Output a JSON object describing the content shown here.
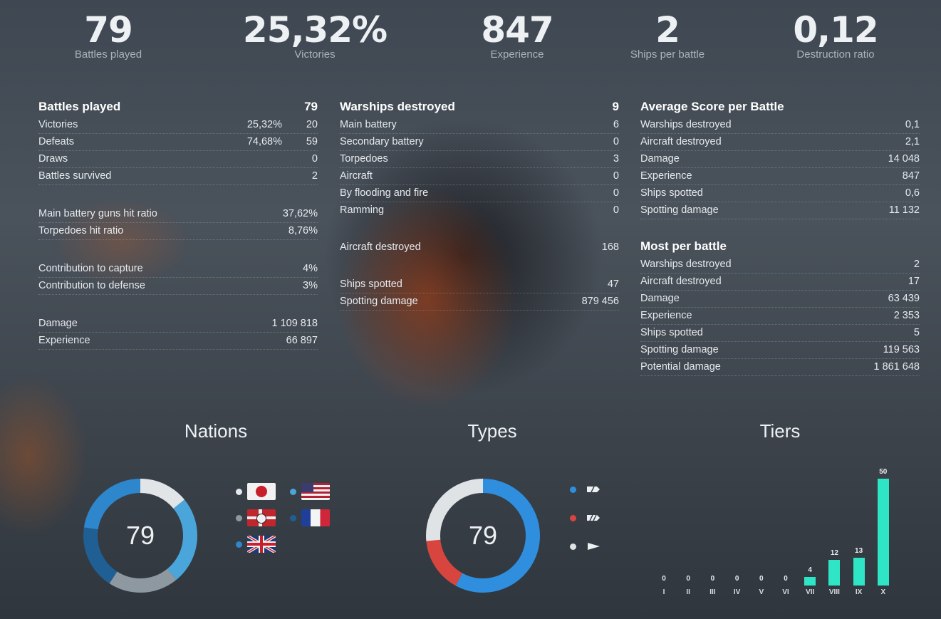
{
  "kpis": [
    {
      "value": "79",
      "label": "Battles played"
    },
    {
      "value": "25,32%",
      "label": "Victories"
    },
    {
      "value": "847",
      "label": "Experience"
    },
    {
      "value": "2",
      "label": "Ships per battle"
    },
    {
      "value": "0,12",
      "label": "Destruction ratio"
    }
  ],
  "col1": {
    "head_label": "Battles played",
    "head_value": "79",
    "victories": {
      "label": "Victories",
      "pct": "25,32%",
      "value": "20"
    },
    "defeats": {
      "label": "Defeats",
      "pct": "74,68%",
      "value": "59"
    },
    "draws": {
      "label": "Draws",
      "value": "0"
    },
    "survived": {
      "label": "Battles survived",
      "value": "2"
    },
    "main_hit": {
      "label": "Main battery guns hit ratio",
      "value": "37,62%"
    },
    "torp_hit": {
      "label": "Torpedoes hit ratio",
      "value": "8,76%"
    },
    "capture": {
      "label": "Contribution to capture",
      "value": "4%"
    },
    "defense": {
      "label": "Contribution to defense",
      "value": "3%"
    },
    "damage": {
      "label": "Damage",
      "value": "1 109 818"
    },
    "experience": {
      "label": "Experience",
      "value": "66 897"
    }
  },
  "col2": {
    "head_label": "Warships destroyed",
    "head_value": "9",
    "main_battery": {
      "label": "Main battery",
      "value": "6"
    },
    "secondary": {
      "label": "Secondary battery",
      "value": "0"
    },
    "torpedoes": {
      "label": "Torpedoes",
      "value": "3"
    },
    "aircraft": {
      "label": "Aircraft",
      "value": "0"
    },
    "flooding": {
      "label": "By flooding and fire",
      "value": "0"
    },
    "ramming": {
      "label": "Ramming",
      "value": "0"
    },
    "aircraft_destroyed": {
      "label": "Aircraft destroyed",
      "value": "168"
    },
    "ships_spotted": {
      "label": "Ships spotted",
      "value": "47"
    },
    "spotting_damage": {
      "label": "Spotting damage",
      "value": "879 456"
    }
  },
  "col3": {
    "avg_head": "Average Score per Battle",
    "avg": [
      {
        "label": "Warships destroyed",
        "value": "0,1"
      },
      {
        "label": "Aircraft destroyed",
        "value": "2,1"
      },
      {
        "label": "Damage",
        "value": "14 048"
      },
      {
        "label": "Experience",
        "value": "847"
      },
      {
        "label": "Ships spotted",
        "value": "0,6"
      },
      {
        "label": "Spotting damage",
        "value": "11 132"
      }
    ],
    "most_head": "Most per battle",
    "most": [
      {
        "label": "Warships destroyed",
        "value": "2"
      },
      {
        "label": "Aircraft destroyed",
        "value": "17"
      },
      {
        "label": "Damage",
        "value": "63 439"
      },
      {
        "label": "Experience",
        "value": "2 353"
      },
      {
        "label": "Ships spotted",
        "value": "5"
      },
      {
        "label": "Spotting damage",
        "value": "119 563"
      },
      {
        "label": "Potential damage",
        "value": "1 861 648"
      }
    ]
  },
  "nations": {
    "title": "Nations",
    "total": "79",
    "legend": [
      {
        "flag": "japan-flag-icon",
        "color": "#e6e9ec"
      },
      {
        "flag": "usa-flag-icon",
        "color": "#4aa6da"
      },
      {
        "flag": "germany-flag-icon",
        "color": "#8e98a1"
      },
      {
        "flag": "france-flag-icon",
        "color": "#1f5f94"
      },
      {
        "flag": "uk-flag-icon",
        "color": "#2e86cc"
      }
    ]
  },
  "types": {
    "title": "Types",
    "total": "79",
    "legend": [
      {
        "icon": "destroyer-icon",
        "color": "#2f8fde"
      },
      {
        "icon": "cruiser-icon",
        "color": "#d8453f"
      },
      {
        "icon": "battleship-icon",
        "color": "#dfe3e6"
      }
    ]
  },
  "tiers": {
    "title": "Tiers",
    "chart_data": {
      "type": "bar",
      "categories": [
        "I",
        "II",
        "III",
        "IV",
        "V",
        "VI",
        "VII",
        "VIII",
        "IX",
        "X"
      ],
      "values": [
        0,
        0,
        0,
        0,
        0,
        0,
        4,
        12,
        13,
        50
      ],
      "color": "#2ee6c6"
    }
  }
}
